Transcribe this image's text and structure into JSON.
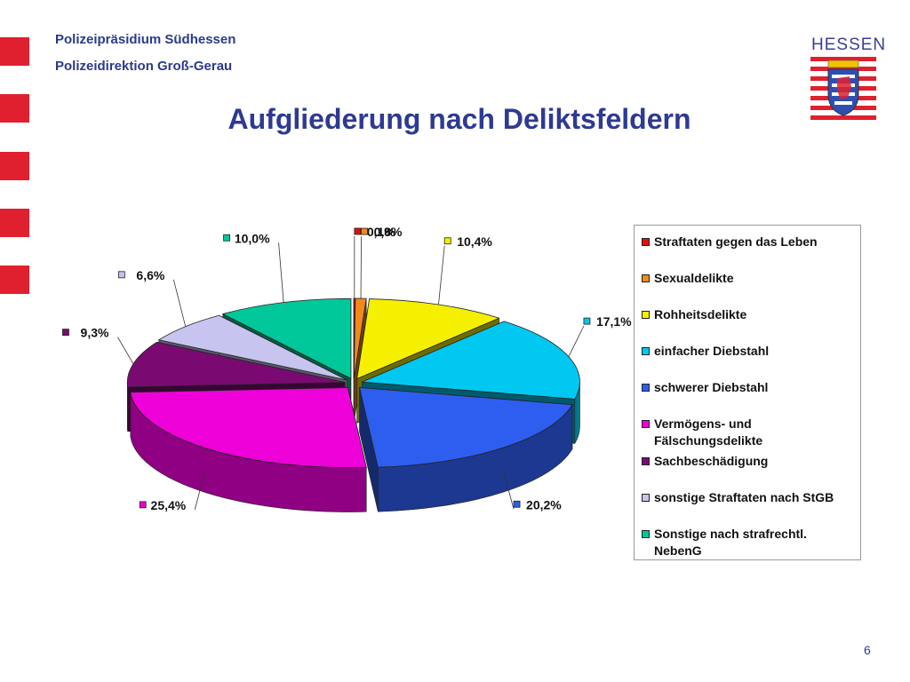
{
  "header": {
    "org_line1": "Polizeipräsidium Südhessen",
    "org_line2": "Polizeidirektion Groß-Gerau",
    "title": "Aufgliederung nach Deliktsfeldern"
  },
  "logo": {
    "text": "HESSEN",
    "icon": "hessen-coat-of-arms-icon"
  },
  "page_number": "6",
  "colors": {
    "accent": "#e0202e",
    "title": "#2e3a92"
  },
  "chart_data": {
    "type": "pie",
    "title": "",
    "categories": [
      "Straftaten gegen das Leben",
      "Sexualdelikte",
      "Rohheitsdelikte",
      "einfacher Diebstahl",
      "schwerer Diebstahl",
      "Vermögens- und Fälschungsdelikte",
      "Sachbeschädigung",
      "sonstige Straftaten nach StGB",
      "Sonstige nach strafrechtl. NebenG"
    ],
    "values": [
      0.1,
      0.8,
      10.4,
      17.1,
      20.2,
      25.4,
      9.3,
      6.6,
      10.0
    ],
    "labels": [
      "0,1%",
      "0,8%",
      "10,4%",
      "17,1%",
      "20,2%",
      "25,4%",
      "9,3%",
      "6,6%",
      "10,0%"
    ],
    "colors": [
      "#e01010",
      "#f08a1a",
      "#f4f000",
      "#00c8f0",
      "#2e5ef0",
      "#ee00d8",
      "#7a0a72",
      "#c8c4f0",
      "#00c89a"
    ],
    "exploded": true,
    "three_d": true,
    "legend_position": "right"
  }
}
